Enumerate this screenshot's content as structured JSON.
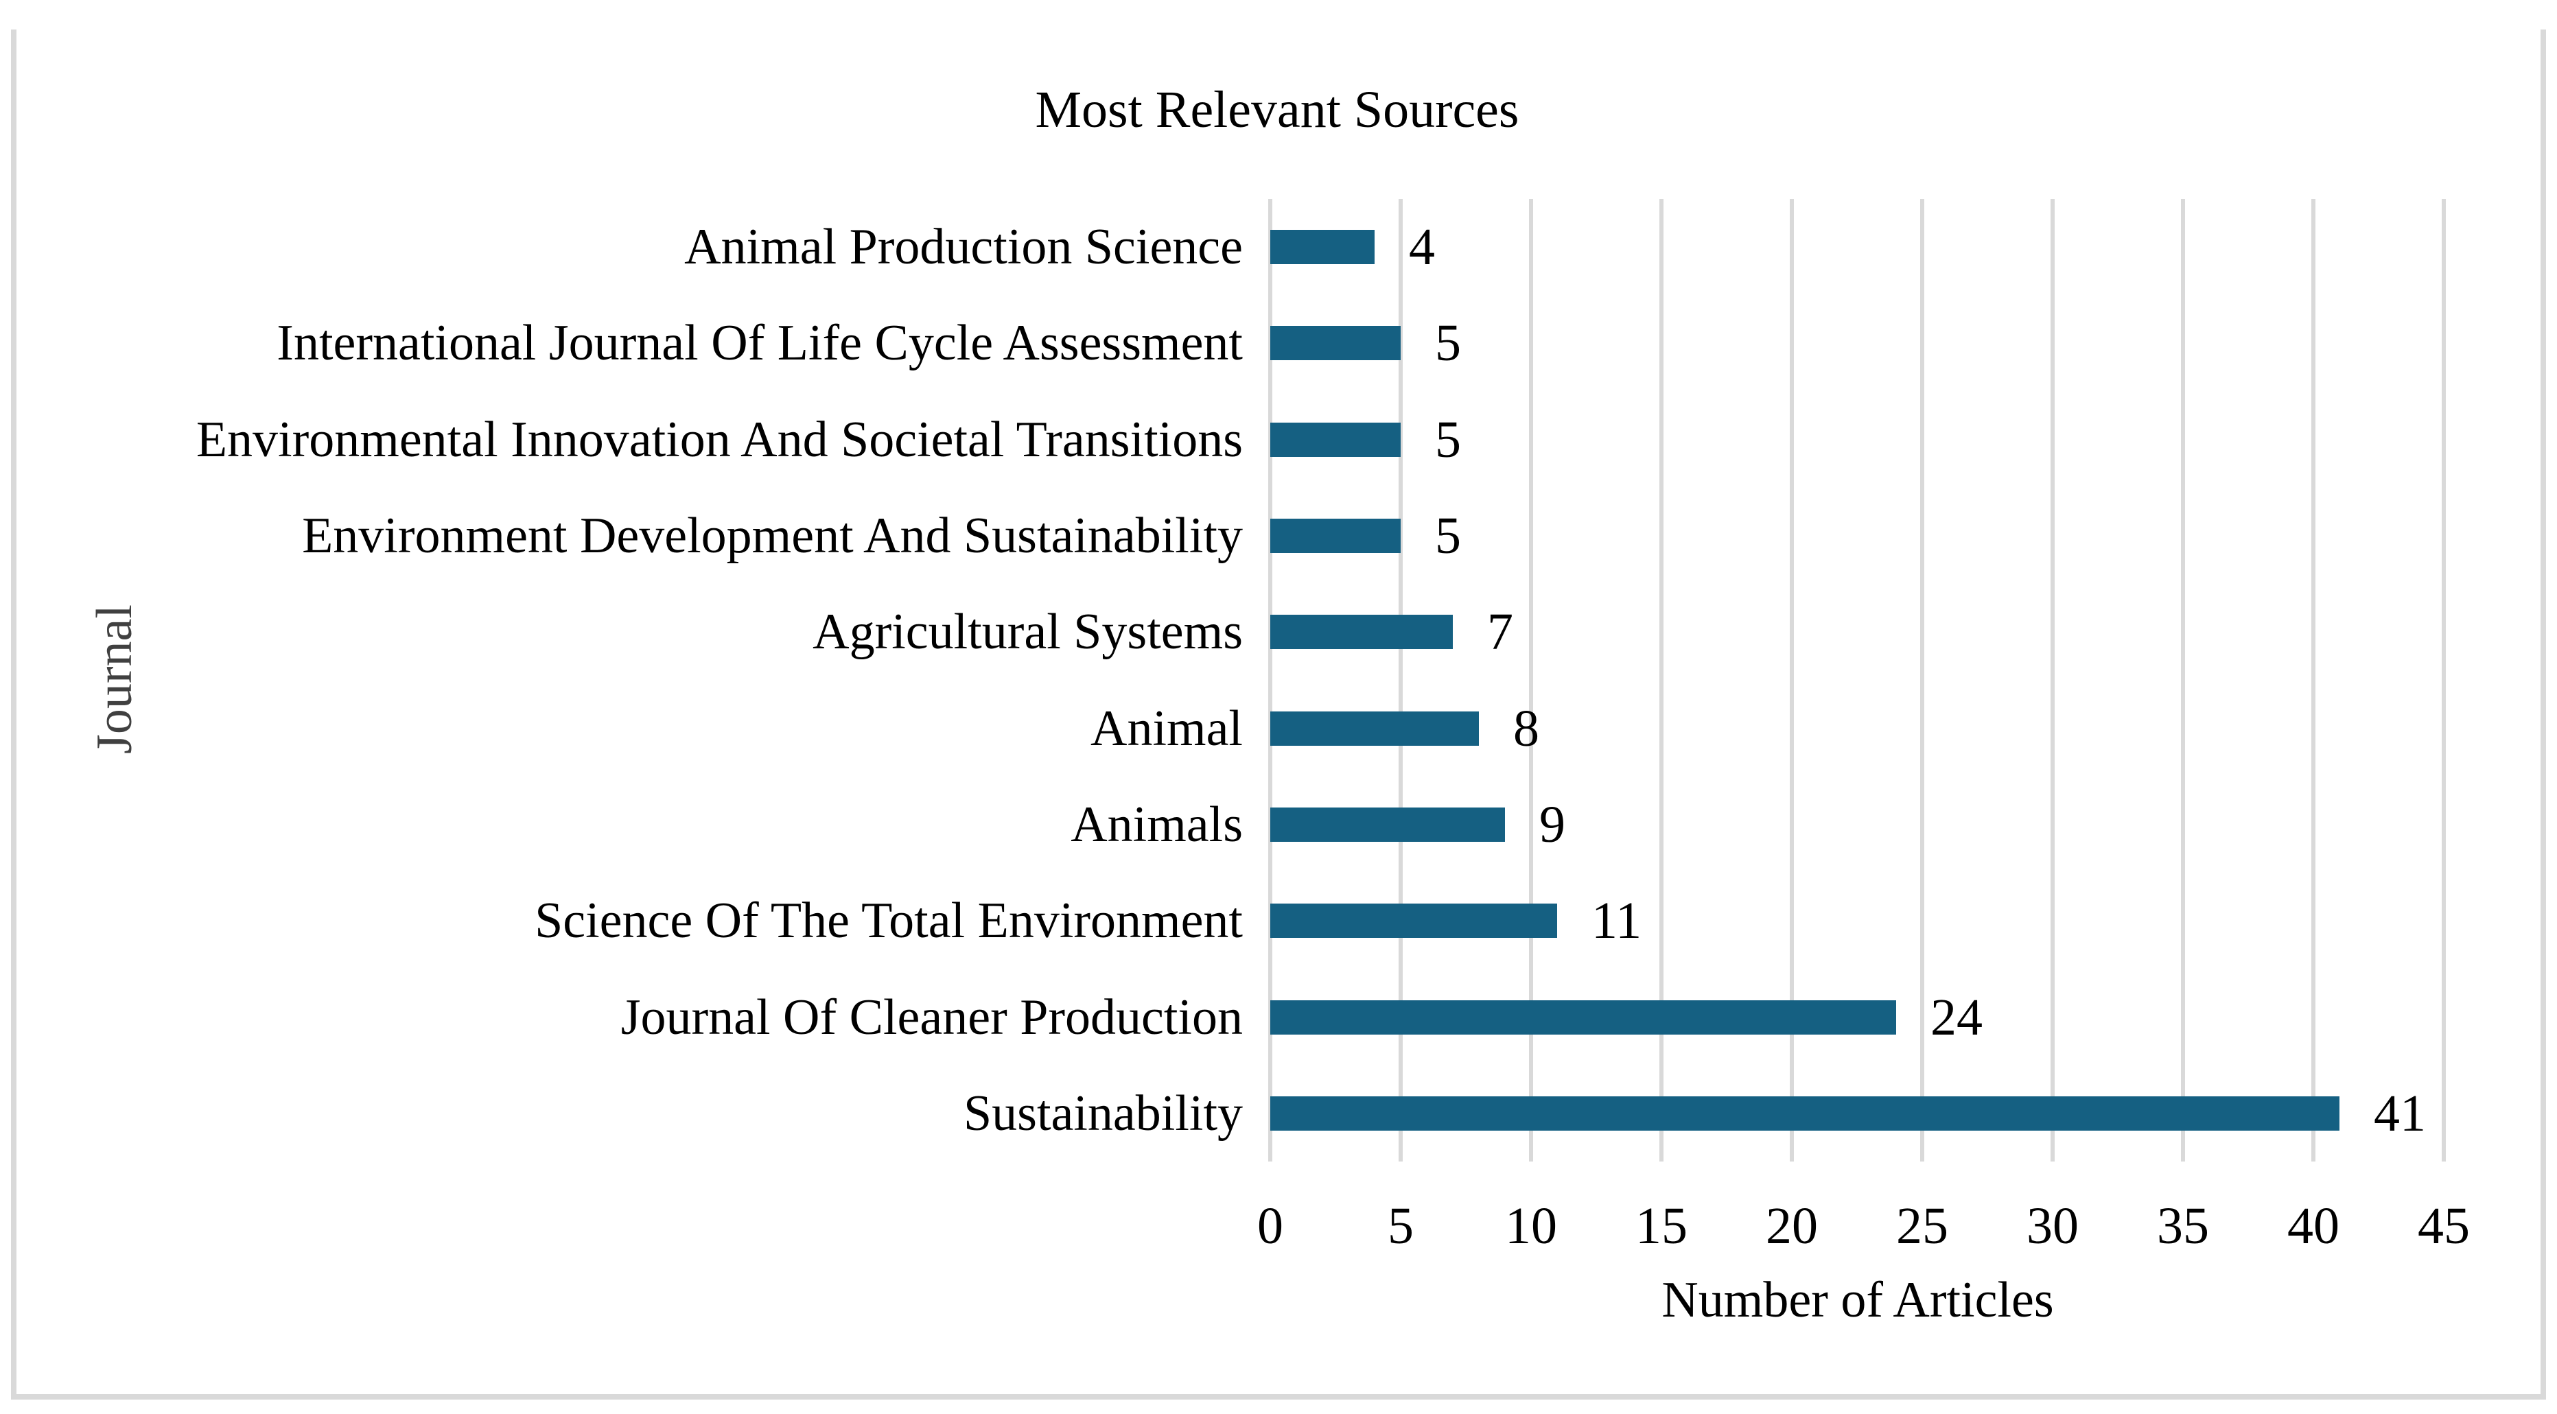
{
  "chart_data": {
    "type": "bar",
    "orientation": "horizontal",
    "title": "Most Relevant Sources",
    "xlabel": "Number of Articles",
    "ylabel": "Journal",
    "categories": [
      "Animal Production Science",
      "International Journal Of Life Cycle Assessment",
      "Environmental Innovation And Societal Transitions",
      "Environment Development And Sustainability",
      "Agricultural Systems",
      "Animal",
      "Animals",
      "Science Of The Total Environment",
      "Journal Of Cleaner Production",
      "Sustainability"
    ],
    "values": [
      4,
      5,
      5,
      5,
      7,
      8,
      9,
      11,
      24,
      41
    ],
    "data_labels": [
      4,
      5,
      5,
      5,
      7,
      8,
      9,
      11,
      24,
      41
    ],
    "xlim": [
      0,
      45
    ],
    "x_ticks": [
      0,
      5,
      10,
      15,
      20,
      25,
      30,
      35,
      40,
      45
    ],
    "grid": "vertical-gridlines-on",
    "legend": "none",
    "colors": {
      "bar": "#156082",
      "gridline": "#d9d9d9",
      "frame_border": "#d9d9d9",
      "text": "#000000",
      "y_axis_title_text": "#404040"
    }
  }
}
